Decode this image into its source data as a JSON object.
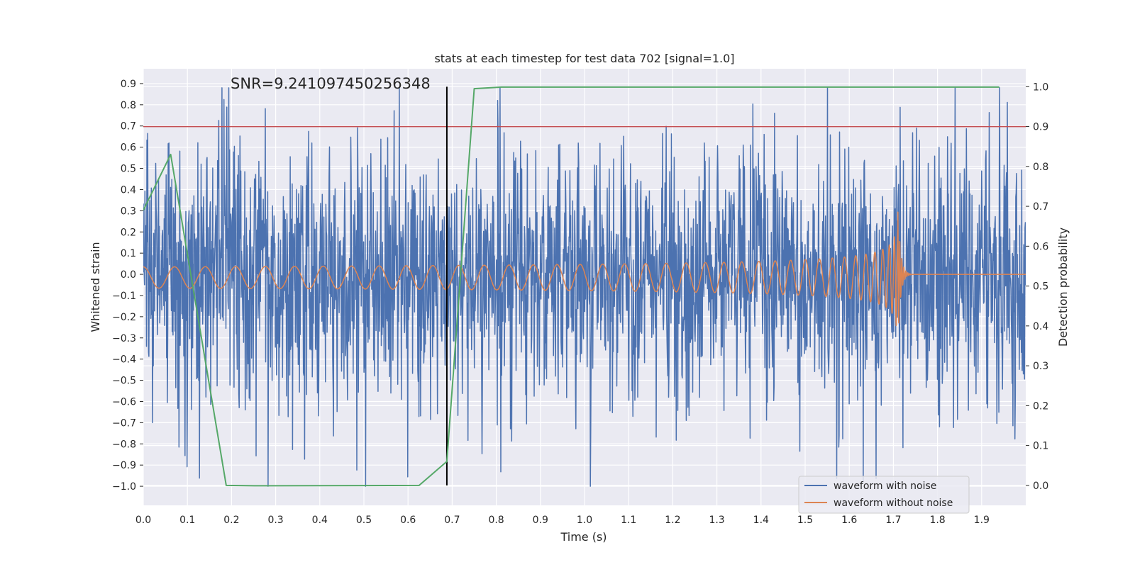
{
  "chart_data": {
    "type": "line",
    "title": "stats at each timestep for test data 702 [signal=1.0]",
    "annotation": "SNR=9.241097450256348",
    "xlabel": "Time (s)",
    "ylabel_left": "Whitened strain",
    "ylabel_right": "Detection probability",
    "xlim": [
      0.0,
      2.0
    ],
    "ylim_left": [
      -1.09,
      0.97
    ],
    "ylim_right": [
      -0.05,
      1.045
    ],
    "x_ticks": [
      "0.0",
      "0.1",
      "0.2",
      "0.3",
      "0.4",
      "0.5",
      "0.6",
      "0.7",
      "0.8",
      "0.9",
      "1.0",
      "1.1",
      "1.2",
      "1.3",
      "1.4",
      "1.5",
      "1.6",
      "1.7",
      "1.8",
      "1.9"
    ],
    "y_ticks_left": [
      "0.9",
      "0.8",
      "0.7",
      "0.6",
      "0.5",
      "0.4",
      "0.3",
      "0.2",
      "0.1",
      "0.0",
      "−0.1",
      "−0.2",
      "−0.3",
      "−0.4",
      "−0.5",
      "−0.6",
      "−0.7",
      "−0.8",
      "−0.9",
      "−1.0"
    ],
    "y_ticks_right": [
      "1.0",
      "0.9",
      "0.8",
      "0.7",
      "0.6",
      "0.5",
      "0.4",
      "0.3",
      "0.2",
      "0.1",
      "0.0"
    ],
    "threshold": {
      "axis": "right",
      "value": 0.9,
      "color": "#c44e52"
    },
    "vline": {
      "x": 0.688,
      "color": "#000000"
    },
    "legend": {
      "placement": "bottom-right",
      "entries": [
        {
          "label": "waveform with noise",
          "color": "#4c72b0"
        },
        {
          "label": "waveform without noise",
          "color": "#dd8452"
        }
      ]
    },
    "series": [
      {
        "name": "waveform with noise",
        "axis": "left",
        "color": "#4c72b0",
        "kind": "noisy-strain",
        "amplitude_range": [
          -1.0,
          0.88
        ]
      },
      {
        "name": "waveform without noise",
        "axis": "left",
        "color": "#dd8452",
        "kind": "chirp",
        "merger_time": 1.71,
        "peak_amplitude": 0.28
      },
      {
        "axis": "right",
        "color": "#55a868",
        "x": [
          0.0,
          0.062,
          0.188,
          0.252,
          0.625,
          0.688,
          0.75,
          0.812,
          1.94
        ],
        "values": [
          0.69,
          0.83,
          0.0,
          -0.001,
          0.0,
          0.06,
          0.995,
          0.999,
          0.999
        ]
      }
    ]
  },
  "styles": {
    "background": "#ffffff",
    "plot_bg": "#eaeaf2",
    "grid_color": "#ffffff",
    "text_color": "#262626"
  }
}
